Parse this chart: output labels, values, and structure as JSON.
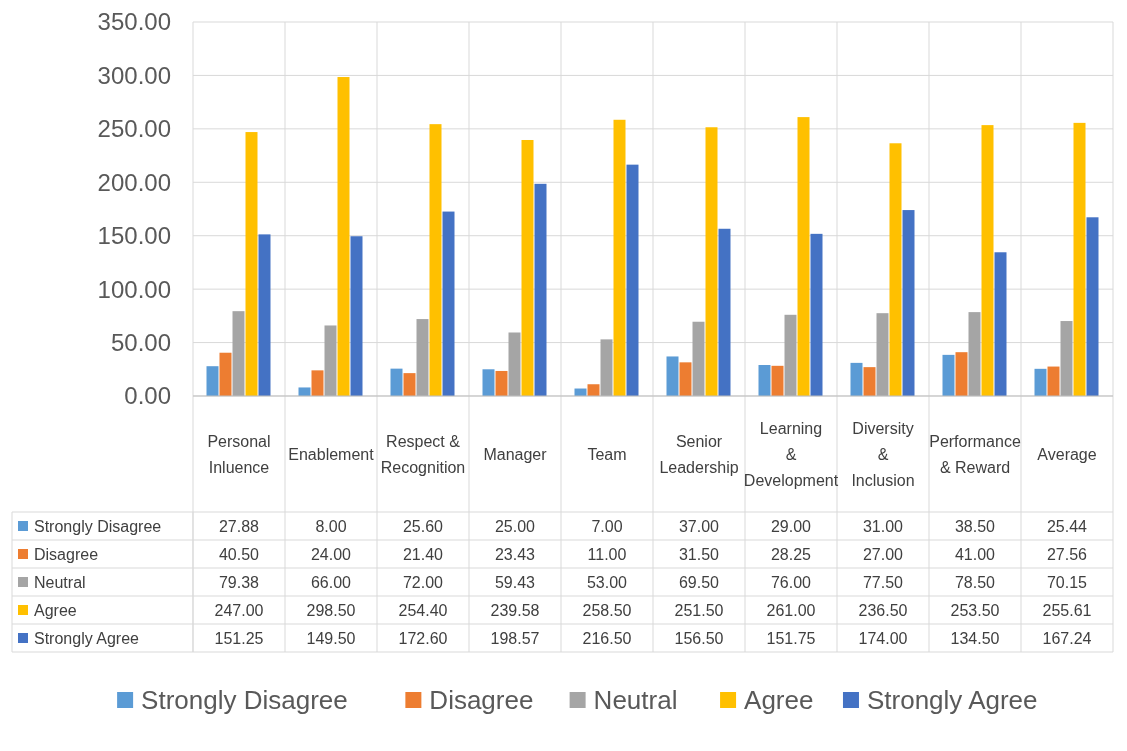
{
  "chart_data": {
    "type": "bar",
    "categories": [
      "Personal Inluence",
      "Enablement",
      "Respect & Recognition",
      "Manager",
      "Team",
      "Senior Leadership",
      "Learning & Development",
      "Diversity & Inclusion",
      "Performance & Reward",
      "Average"
    ],
    "series": [
      {
        "name": "Strongly Disagree",
        "color": "#5b9bd5",
        "values": [
          27.88,
          8,
          25.6,
          25,
          7,
          37,
          29,
          31,
          38.5,
          25.44
        ],
        "value_labels": [
          "27.88",
          "8.00",
          "25.60",
          "25.00",
          "7.00",
          "37.00",
          "29.00",
          "31.00",
          "38.50",
          "25.44"
        ]
      },
      {
        "name": "Disagree",
        "color": "#ed7d31",
        "values": [
          40.5,
          24,
          21.4,
          23.43,
          11,
          31.5,
          28.25,
          27,
          41,
          27.56
        ],
        "value_labels": [
          "40.50",
          "24.00",
          "21.40",
          "23.43",
          "11.00",
          "31.50",
          "28.25",
          "27.00",
          "41.00",
          "27.56"
        ]
      },
      {
        "name": "Neutral",
        "color": "#a5a5a5",
        "values": [
          79.38,
          66,
          72,
          59.43,
          53,
          69.5,
          76,
          77.5,
          78.5,
          70.15
        ],
        "value_labels": [
          "79.38",
          "66.00",
          "72.00",
          "59.43",
          "53.00",
          "69.50",
          "76.00",
          "77.50",
          "78.50",
          "70.15"
        ]
      },
      {
        "name": "Agree",
        "color": "#ffc000",
        "values": [
          247,
          298.5,
          254.4,
          239.58,
          258.5,
          251.5,
          261,
          236.5,
          253.5,
          255.61
        ],
        "value_labels": [
          "247.00",
          "298.50",
          "254.40",
          "239.58",
          "258.50",
          "251.50",
          "261.00",
          "236.50",
          "253.50",
          "255.61"
        ]
      },
      {
        "name": "Strongly Agree",
        "color": "#4472c4",
        "values": [
          151.25,
          149.5,
          172.6,
          198.57,
          216.5,
          156.5,
          151.75,
          174,
          134.5,
          167.24
        ],
        "value_labels": [
          "151.25",
          "149.50",
          "172.60",
          "198.57",
          "216.50",
          "156.50",
          "151.75",
          "174.00",
          "134.50",
          "167.24"
        ]
      }
    ],
    "ylim": [
      0,
      350
    ],
    "yticks": [
      {
        "value": 0,
        "label": "0.00"
      },
      {
        "value": 50,
        "label": "50.00"
      },
      {
        "value": 100,
        "label": "100.00"
      },
      {
        "value": 150,
        "label": "150.00"
      },
      {
        "value": 200,
        "label": "200.00"
      },
      {
        "value": 250,
        "label": "250.00"
      },
      {
        "value": 300,
        "label": "300.00"
      },
      {
        "value": 350,
        "label": "350.00"
      }
    ],
    "grid": true,
    "legend": "bottom"
  }
}
